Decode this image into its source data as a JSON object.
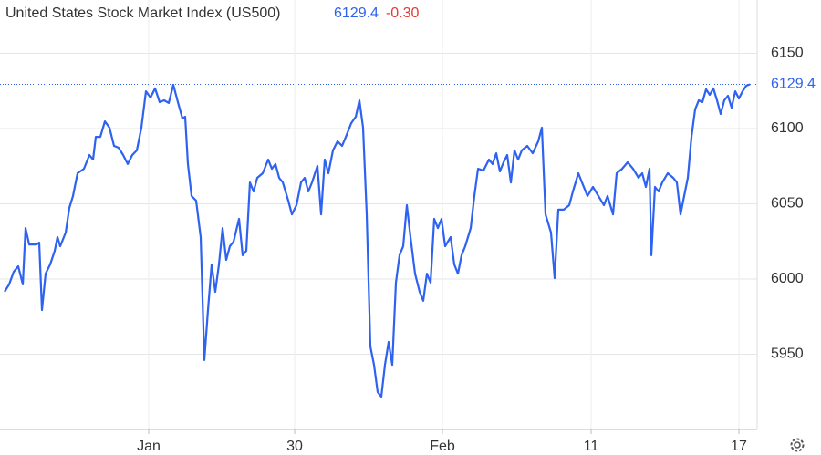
{
  "chart_data": {
    "type": "line",
    "title": "United States Stock Market Index (US500)",
    "last_price": 6129.4,
    "change": "-0.30",
    "color": "#2e62f0",
    "grid": true,
    "ylim": [
      5900,
      6180
    ],
    "yticks": [
      5950,
      6000,
      6050,
      6100,
      6150
    ],
    "xlim": [
      0,
      830
    ],
    "xticks": [
      {
        "value": 163,
        "label": "Jan"
      },
      {
        "value": 323,
        "label": "30"
      },
      {
        "value": 485,
        "label": "Feb"
      },
      {
        "value": 648,
        "label": "11"
      },
      {
        "value": 810,
        "label": "17"
      }
    ],
    "x": [
      5,
      10,
      15,
      20,
      25,
      28,
      32,
      40,
      43,
      46,
      50,
      55,
      60,
      63,
      66,
      72,
      76,
      80,
      85,
      92,
      98,
      102,
      105,
      110,
      115,
      120,
      125,
      130,
      135,
      140,
      145,
      150,
      155,
      160,
      165,
      170,
      175,
      180,
      185,
      190,
      195,
      200,
      203,
      206,
      210,
      215,
      220,
      224,
      228,
      232,
      236,
      240,
      244,
      248,
      252,
      256,
      262,
      266,
      270,
      274,
      278,
      282,
      288,
      294,
      298,
      302,
      306,
      310,
      316,
      320,
      325,
      330,
      334,
      338,
      342,
      348,
      352,
      356,
      360,
      365,
      370,
      375,
      380,
      385,
      390,
      394,
      398,
      402,
      406,
      410,
      414,
      418,
      422,
      426,
      430,
      434,
      438,
      442,
      446,
      450,
      455,
      460,
      464,
      468,
      472,
      476,
      480,
      484,
      488,
      494,
      498,
      502,
      506,
      510,
      516,
      520,
      524,
      530,
      536,
      540,
      544,
      548,
      552,
      556,
      560,
      564,
      568,
      572,
      578,
      584,
      590,
      594,
      598,
      604,
      608,
      612,
      618,
      624,
      628,
      634,
      638,
      644,
      650,
      656,
      662,
      666,
      672,
      676,
      682,
      688,
      694,
      700,
      704,
      708,
      712,
      714,
      718,
      722,
      726,
      732,
      738,
      742,
      746,
      750,
      754,
      758,
      762,
      766,
      770,
      774,
      778,
      782,
      786,
      790,
      794,
      798,
      802,
      806,
      810,
      814,
      818,
      822
    ],
    "values": [
      5991.5,
      5996.4,
      6004.8,
      6008.5,
      5996.4,
      6033.9,
      6023.0,
      6023.0,
      6024.2,
      5979.4,
      6003.6,
      6009.7,
      6018.8,
      6027.9,
      6021.8,
      6030.9,
      6047.3,
      6055.2,
      6070.3,
      6073.3,
      6082.4,
      6079.4,
      6094.5,
      6094.5,
      6104.8,
      6100.6,
      6088.5,
      6087.3,
      6082.4,
      6076.4,
      6082.4,
      6085.5,
      6100.6,
      6124.8,
      6120.6,
      6126.7,
      6117.6,
      6118.8,
      6117.0,
      6129.1,
      6117.6,
      6106.7,
      6107.9,
      6076.4,
      6055.2,
      6052.1,
      6027.9,
      5946.1,
      5979.4,
      6009.7,
      5991.5,
      6009.7,
      6033.9,
      6012.7,
      6021.8,
      6024.8,
      6040.0,
      6015.8,
      6018.8,
      6064.2,
      6058.2,
      6067.3,
      6070.3,
      6079.4,
      6073.3,
      6076.4,
      6067.3,
      6064.2,
      6052.1,
      6043.0,
      6049.1,
      6064.2,
      6067.3,
      6058.2,
      6064.2,
      6075.2,
      6043.0,
      6079.4,
      6070.3,
      6085.5,
      6091.5,
      6088.5,
      6095.8,
      6103.6,
      6107.9,
      6118.8,
      6100.6,
      6043.0,
      5955.2,
      5943.0,
      5924.8,
      5921.8,
      5943.0,
      5958.2,
      5943.0,
      5997.6,
      6015.8,
      6021.8,
      6049.1,
      6027.9,
      6003.6,
      5991.5,
      5985.5,
      6003.6,
      5997.6,
      6040.0,
      6033.9,
      6040.0,
      6021.8,
      6027.9,
      6009.7,
      6003.6,
      6015.8,
      6021.8,
      6033.9,
      6055.2,
      6073.3,
      6072.1,
      6079.4,
      6076.4,
      6083.6,
      6071.5,
      6077.6,
      6082.4,
      6064.2,
      6085.5,
      6079.4,
      6085.5,
      6088.5,
      6083.6,
      6091.5,
      6100.6,
      6043.0,
      6030.9,
      6000.6,
      6046.1,
      6046.1,
      6049.1,
      6058.2,
      6070.3,
      6064.2,
      6055.2,
      6061.2,
      6055.2,
      6049.1,
      6055.2,
      6043.0,
      6070.3,
      6073.3,
      6077.6,
      6073.3,
      6067.3,
      6070.3,
      6061.2,
      6073.3,
      6015.8,
      6061.2,
      6058.2,
      6064.2,
      6070.3,
      6067.3,
      6064.2,
      6043.0,
      6055.2,
      6067.3,
      6094.5,
      6112.7,
      6118.8,
      6117.6,
      6126.1,
      6122.4,
      6126.7,
      6118.8,
      6109.7,
      6118.8,
      6121.8,
      6113.9,
      6124.8,
      6120.0,
      6124.8,
      6128.5,
      6129.4
    ]
  }
}
